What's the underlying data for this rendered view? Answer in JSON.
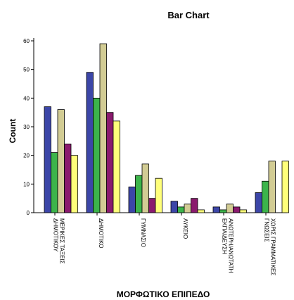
{
  "chart_data": {
    "type": "bar",
    "title": "Bar Chart",
    "xlabel": "ΜΟΡΦΩΤΙΚΟ ΕΠΙΠΕΔΟ",
    "ylabel": "Count",
    "ylim": [
      0,
      60
    ],
    "yticks": [
      "0",
      "10",
      "20",
      "30",
      "40",
      "50",
      "60"
    ],
    "grid": false,
    "legend": "none",
    "categories": [
      [
        "ΜΕΡΙΚΕΣ ΤΑΞΕΙΣ",
        "ΔΗΜΟΤΙΚΟΥ"
      ],
      [
        "ΔΗΜΟΤΙΚΟ"
      ],
      [
        "ΓΥΜΝΑΣΙΟ"
      ],
      [
        "ΛΥΚΕΙΟ"
      ],
      [
        "ΑΝΩΤΕΡΗ/ΑΝΩΤΑΤΗ",
        "ΕΚΠΑΙΔΕΥΣΗ"
      ],
      [
        "ΧΩΡΙΣ ΓΡΑΜΜΑΤΙΚΕΣ",
        "ΓΝΩΣΕΙΣ"
      ]
    ],
    "series": [
      {
        "color": "#3c46a8",
        "values": [
          37,
          49,
          9,
          4,
          2,
          7
        ]
      },
      {
        "color": "#3cb44b",
        "values": [
          21,
          40,
          13,
          2,
          1,
          11
        ]
      },
      {
        "color": "#d2cc94",
        "values": [
          36,
          59,
          17,
          3,
          3,
          18
        ]
      },
      {
        "color": "#8a1a6e",
        "values": [
          24,
          35,
          5,
          5,
          2,
          0
        ]
      },
      {
        "color": "#ffff7a",
        "values": [
          20,
          32,
          12,
          1,
          1,
          18
        ]
      }
    ]
  }
}
